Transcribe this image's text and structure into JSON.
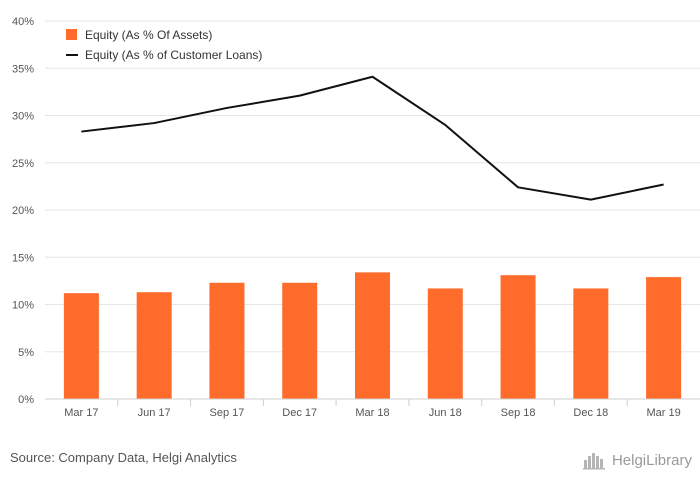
{
  "chart_data": {
    "type": "bar",
    "categories": [
      "Mar 17",
      "Jun 17",
      "Sep 17",
      "Dec 17",
      "Mar 18",
      "Jun 18",
      "Sep 18",
      "Dec 18",
      "Mar 19"
    ],
    "series": [
      {
        "name": "Equity (As % Of Assets)",
        "kind": "bar",
        "color": "#ff6b2b",
        "values": [
          11.2,
          11.3,
          12.3,
          12.3,
          13.4,
          11.7,
          13.1,
          11.7,
          12.9
        ]
      },
      {
        "name": "Equity (As % of Customer Loans)",
        "kind": "line",
        "color": "#111111",
        "values": [
          28.3,
          29.2,
          30.8,
          32.1,
          34.1,
          29.0,
          22.4,
          21.1,
          22.7
        ]
      }
    ],
    "yticks": [
      "0%",
      "5%",
      "10%",
      "15%",
      "20%",
      "25%",
      "30%",
      "35%",
      "40%"
    ],
    "ylim": [
      0,
      40
    ],
    "grid": true,
    "legend": "top-left"
  },
  "footer": {
    "source": "Source: Company Data, Helgi Analytics",
    "brand": "HelgiLibrary"
  }
}
